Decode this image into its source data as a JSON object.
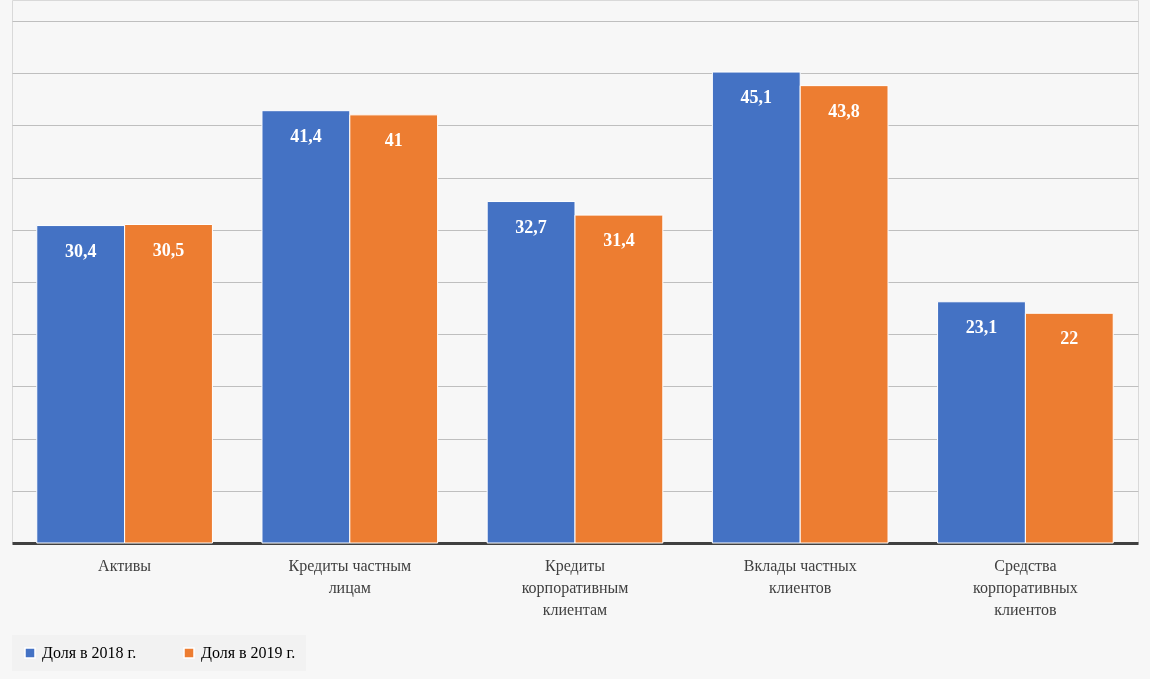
{
  "chart_data": {
    "type": "bar",
    "categories": [
      "Активы",
      "Кредиты частным лицам",
      "Кредиты корпоративным клиентам",
      "Вклады частных клиентов",
      "Средства корпоративных клиентов"
    ],
    "series": [
      {
        "name": "Доля в 2018  г.",
        "color": "#4472c4",
        "values": [
          30.4,
          41.4,
          32.7,
          45.1,
          23.1
        ],
        "value_labels": [
          "30,4",
          "41,4",
          "32,7",
          "45,1",
          "23,1"
        ]
      },
      {
        "name": "Доля в 2019 г.",
        "color": "#ed7d31",
        "values": [
          30.5,
          41,
          31.4,
          43.8,
          22
        ],
        "value_labels": [
          "30,5",
          "41",
          "31,4",
          "43,8",
          "22"
        ]
      }
    ],
    "ylim": [
      0,
      52
    ],
    "yticks": [
      {
        "value": 5,
        "label": null
      },
      {
        "value": 10,
        "label": null
      },
      {
        "value": 15,
        "label": null
      },
      {
        "value": 20,
        "label": null
      },
      {
        "value": 25,
        "label": null
      },
      {
        "value": 30,
        "label": null
      },
      {
        "value": 35,
        "label": null
      },
      {
        "value": 40,
        "label": null
      },
      {
        "value": 45,
        "label": null
      },
      {
        "value": 50,
        "label": null
      }
    ],
    "grid": "y",
    "tick_labels": "x",
    "legend": "bottom"
  }
}
